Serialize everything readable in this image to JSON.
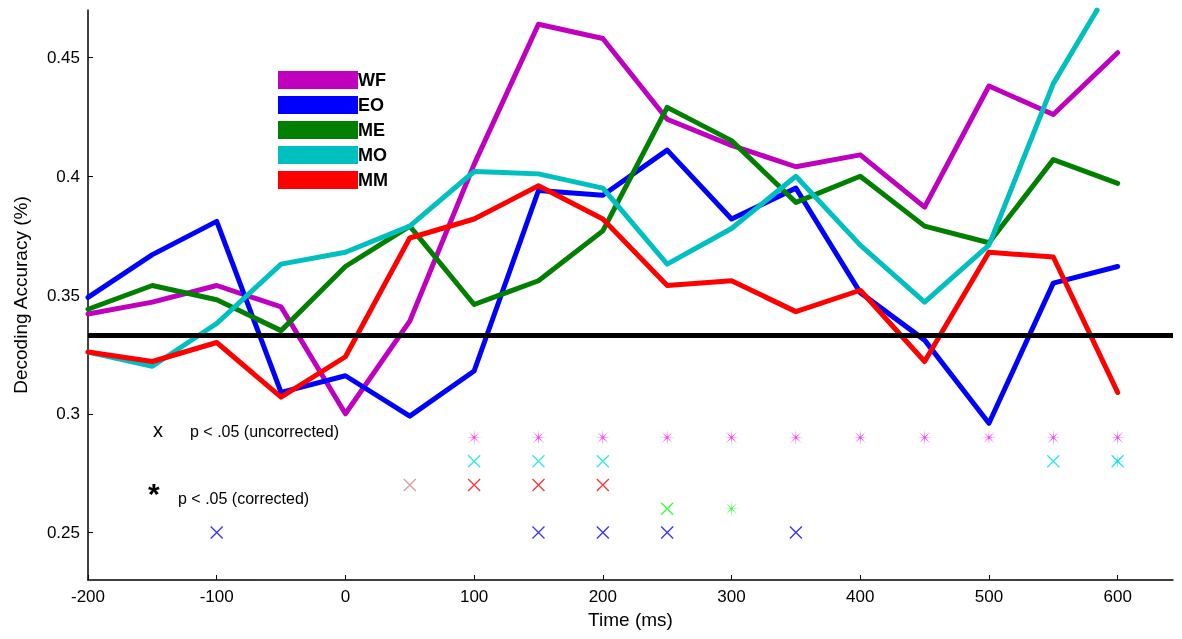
{
  "chart_data": {
    "type": "line",
    "xlabel": "Time (ms)",
    "ylabel": "Decoding Accuracy (%)",
    "x": [
      -200,
      -150,
      -100,
      -50,
      0,
      50,
      100,
      150,
      200,
      250,
      300,
      350,
      400,
      450,
      500,
      550,
      600
    ],
    "xlim": [
      -200,
      643
    ],
    "xticks": [
      -200,
      -100,
      0,
      100,
      200,
      300,
      400,
      500,
      600
    ],
    "ylim": [
      0.23,
      0.47
    ],
    "yticks": [
      0.25,
      0.3,
      0.35,
      0.4,
      0.45
    ],
    "grid": false,
    "legend": "top left",
    "line_style": "solid",
    "series": [
      {
        "name": "WF",
        "color": "#bf00bf",
        "marker": "none",
        "values": [
          0.342,
          0.347,
          0.354,
          0.345,
          0.3,
          0.339,
          0.405,
          0.464,
          0.458,
          0.424,
          0.413,
          0.404,
          0.409,
          0.387,
          0.438,
          0.426,
          0.452
        ]
      },
      {
        "name": "EO",
        "color": "#0000ff",
        "marker": "none",
        "values": [
          0.349,
          0.367,
          0.381,
          0.309,
          0.316,
          0.299,
          0.318,
          0.394,
          0.392,
          0.411,
          0.382,
          0.395,
          0.351,
          0.331,
          0.296,
          0.355,
          0.362
        ]
      },
      {
        "name": "ME",
        "color": "#007f00",
        "marker": "none",
        "values": [
          0.344,
          0.354,
          0.348,
          0.335,
          0.362,
          0.379,
          0.346,
          0.356,
          0.377,
          0.429,
          0.415,
          0.389,
          0.4,
          0.379,
          0.372,
          0.407,
          0.397
        ]
      },
      {
        "name": "MO",
        "color": "#00bfbf",
        "marker": "none",
        "x": [
          -200,
          -150,
          -100,
          -50,
          0,
          50,
          100,
          150,
          200,
          250,
          300,
          350,
          400,
          450,
          500,
          550,
          584
        ],
        "values": [
          0.326,
          0.32,
          0.338,
          0.363,
          0.368,
          0.379,
          0.402,
          0.401,
          0.395,
          0.363,
          0.378,
          0.4,
          0.371,
          0.347,
          0.371,
          0.439,
          0.47
        ]
      },
      {
        "name": "MM",
        "color": "#ff0000",
        "marker": "none",
        "values": [
          0.326,
          0.322,
          0.33,
          0.307,
          0.324,
          0.374,
          0.382,
          0.396,
          0.382,
          0.354,
          0.356,
          0.343,
          0.352,
          0.322,
          0.368,
          0.366,
          0.309
        ]
      },
      {
        "type": "scatter",
        "color": "#ff00ff",
        "marker": "star",
        "x": [
          100,
          150,
          200,
          250,
          300,
          350,
          400,
          450,
          500,
          550,
          600
        ],
        "values": [
          0.29,
          0.29,
          0.29,
          0.29,
          0.29,
          0.29,
          0.29,
          0.29,
          0.29,
          0.29,
          0.29
        ]
      },
      {
        "type": "scatter",
        "color": "#00e0e0",
        "marker": "cross",
        "x": [
          100,
          150,
          200,
          550,
          600
        ],
        "values": [
          0.28,
          0.28,
          0.28,
          0.28,
          0.28
        ]
      },
      {
        "type": "scatter",
        "color": "#00e0e0",
        "marker": "star",
        "x": [
          600
        ],
        "values": [
          0.28
        ]
      },
      {
        "type": "scatter",
        "color": "#cc8888",
        "marker": "cross",
        "x": [
          50
        ],
        "values": [
          0.27
        ]
      },
      {
        "type": "scatter",
        "color": "#ff0000",
        "marker": "cross",
        "x": [
          100,
          150,
          200
        ],
        "values": [
          0.27,
          0.27,
          0.27
        ]
      },
      {
        "type": "scatter",
        "color": "#00ff00",
        "marker": "cross",
        "x": [
          250
        ],
        "values": [
          0.26
        ]
      },
      {
        "type": "scatter",
        "color": "#00ff00",
        "marker": "star",
        "x": [
          300
        ],
        "values": [
          0.26
        ]
      },
      {
        "type": "scatter",
        "color": "#0000ff",
        "marker": "cross",
        "x": [
          -100,
          150,
          200,
          250,
          350
        ],
        "values": [
          0.25,
          0.25,
          0.25,
          0.25,
          0.25
        ]
      }
    ],
    "ref_lines": [
      {
        "axis": "y",
        "value": 0.333,
        "color": "#000000",
        "line_style": "solid"
      }
    ],
    "annotations": [
      "x",
      "p < .05 (uncorrected)",
      "*",
      "p < .05 (corrected)"
    ]
  }
}
